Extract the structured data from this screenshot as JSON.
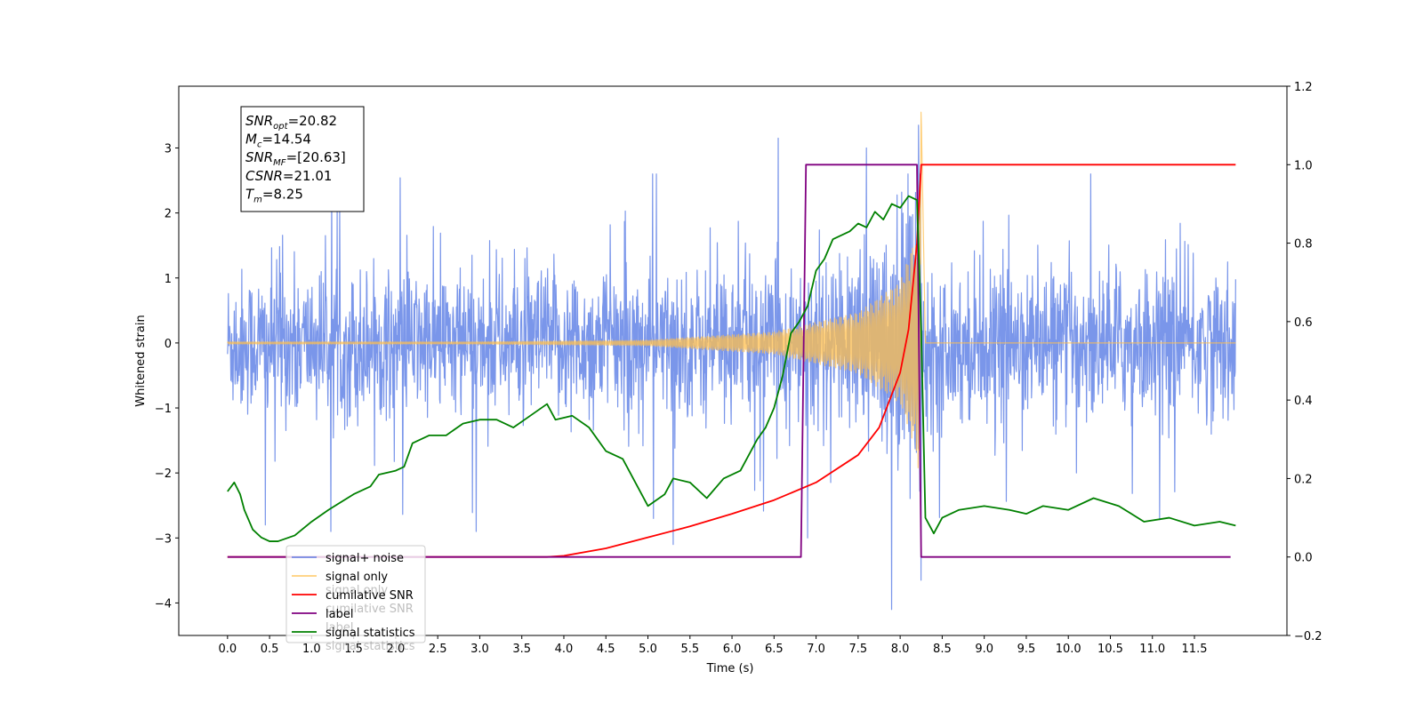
{
  "chart_data": {
    "type": "line",
    "title": "",
    "xlabel": "Time (s)",
    "ylabel": "Whitened strain",
    "xlim": [
      -0.58,
      12.6
    ],
    "ylim": [
      -4.5,
      3.95
    ],
    "y2lim": [
      -0.2,
      1.2
    ],
    "x_ticks": [
      0.0,
      0.5,
      1.0,
      1.5,
      2.0,
      2.5,
      3.0,
      3.5,
      4.0,
      4.5,
      5.0,
      5.5,
      6.0,
      6.5,
      7.0,
      7.5,
      8.0,
      8.5,
      9.0,
      9.5,
      10.0,
      10.5,
      11.0,
      11.5
    ],
    "x_tick_labels": [
      "0.0",
      "0.5",
      "1.0",
      "1.5",
      "2.0",
      "2.5",
      "3.0",
      "3.5",
      "4.0",
      "4.5",
      "5.0",
      "5.5",
      "6.0",
      "6.5",
      "7.0",
      "7.5",
      "8.0",
      "8.5",
      "9.0",
      "9.5",
      "10.0",
      "10.5",
      "11.0",
      "11.5"
    ],
    "y_ticks": [
      3,
      2,
      1,
      0,
      -1,
      -2,
      -3,
      -4
    ],
    "y_tick_labels": [
      "3",
      "2",
      "1",
      "0",
      "−1",
      "−2",
      "−3",
      "−4"
    ],
    "y2_ticks": [
      1.2,
      1.0,
      0.8,
      0.6,
      0.4,
      0.2,
      0.0,
      -0.2
    ],
    "y2_tick_labels": [
      "1.2",
      "1.0",
      "0.8",
      "0.6",
      "0.4",
      "0.2",
      "0.0",
      "−0.2"
    ],
    "grid": false,
    "legend_position": "bottom-left",
    "annotation": [
      {
        "base": "SNR",
        "sub": "opt",
        "value": "=20.82"
      },
      {
        "base": "M",
        "sub": "c",
        "value": "=14.54"
      },
      {
        "base": "SNR",
        "sub": "MF",
        "value": "=[20.63]"
      },
      {
        "base": "CSNR",
        "sub": "",
        "value": "=21.01"
      },
      {
        "base": "T",
        "sub": "m",
        "value": "=8.25"
      }
    ],
    "series": [
      {
        "name": "signal+ noise",
        "axis": "left",
        "color": "#4169e1",
        "x_range": [
          0.0,
          11.99
        ],
        "noise_std": 0.55,
        "peaks": [
          {
            "x": 7.9,
            "y": -4.1
          },
          {
            "x": 8.22,
            "y": 3.35
          },
          {
            "x": 8.25,
            "y": -3.65
          },
          {
            "x": 6.55,
            "y": 3.15
          },
          {
            "x": 7.6,
            "y": 3.0
          },
          {
            "x": 0.45,
            "y": -2.8
          },
          {
            "x": 5.3,
            "y": -3.1
          },
          {
            "x": 6.9,
            "y": -3.0
          }
        ]
      },
      {
        "name": "signal only",
        "axis": "left",
        "color": "#ffbf4d",
        "x_range": [
          0.0,
          11.99
        ],
        "merger_time": 8.25,
        "merger_peak": 3.55,
        "envelope": [
          [
            3.0,
            0.02
          ],
          [
            5.0,
            0.05
          ],
          [
            6.5,
            0.2
          ],
          [
            7.5,
            0.55
          ],
          [
            8.0,
            1.1
          ],
          [
            8.2,
            2.0
          ],
          [
            8.25,
            3.55
          ]
        ]
      },
      {
        "name": "cumilative SNR",
        "axis": "right",
        "color": "#ff0000",
        "points": [
          [
            0.0,
            0.0
          ],
          [
            3.8,
            0.0
          ],
          [
            4.0,
            0.003
          ],
          [
            4.5,
            0.022
          ],
          [
            5.0,
            0.05
          ],
          [
            5.5,
            0.078
          ],
          [
            6.0,
            0.11
          ],
          [
            6.5,
            0.145
          ],
          [
            7.0,
            0.19
          ],
          [
            7.5,
            0.26
          ],
          [
            7.75,
            0.33
          ],
          [
            8.0,
            0.47
          ],
          [
            8.1,
            0.58
          ],
          [
            8.2,
            0.8
          ],
          [
            8.25,
            1.0
          ],
          [
            11.99,
            1.0
          ]
        ]
      },
      {
        "name": "label",
        "axis": "right",
        "color": "#800080",
        "points": [
          [
            0.0,
            0.0
          ],
          [
            6.82,
            0.0
          ],
          [
            6.88,
            1.0
          ],
          [
            8.2,
            1.0
          ],
          [
            8.25,
            0.0
          ],
          [
            11.93,
            0.0
          ]
        ]
      },
      {
        "name": "signal statistics",
        "axis": "right",
        "color": "#008000",
        "points": [
          [
            0.0,
            0.167
          ],
          [
            0.08,
            0.19
          ],
          [
            0.15,
            0.16
          ],
          [
            0.2,
            0.12
          ],
          [
            0.3,
            0.07
          ],
          [
            0.4,
            0.05
          ],
          [
            0.5,
            0.04
          ],
          [
            0.6,
            0.04
          ],
          [
            0.8,
            0.055
          ],
          [
            1.0,
            0.09
          ],
          [
            1.2,
            0.12
          ],
          [
            1.5,
            0.16
          ],
          [
            1.7,
            0.18
          ],
          [
            1.8,
            0.21
          ],
          [
            2.0,
            0.22
          ],
          [
            2.1,
            0.23
          ],
          [
            2.2,
            0.29
          ],
          [
            2.4,
            0.31
          ],
          [
            2.6,
            0.31
          ],
          [
            2.8,
            0.34
          ],
          [
            3.0,
            0.35
          ],
          [
            3.2,
            0.35
          ],
          [
            3.4,
            0.33
          ],
          [
            3.6,
            0.36
          ],
          [
            3.8,
            0.39
          ],
          [
            3.9,
            0.35
          ],
          [
            4.1,
            0.36
          ],
          [
            4.3,
            0.33
          ],
          [
            4.5,
            0.27
          ],
          [
            4.7,
            0.25
          ],
          [
            5.0,
            0.13
          ],
          [
            5.2,
            0.16
          ],
          [
            5.3,
            0.2
          ],
          [
            5.5,
            0.19
          ],
          [
            5.7,
            0.15
          ],
          [
            5.9,
            0.2
          ],
          [
            6.1,
            0.22
          ],
          [
            6.3,
            0.3
          ],
          [
            6.4,
            0.33
          ],
          [
            6.5,
            0.38
          ],
          [
            6.6,
            0.46
          ],
          [
            6.7,
            0.57
          ],
          [
            6.8,
            0.6
          ],
          [
            6.9,
            0.64
          ],
          [
            7.0,
            0.73
          ],
          [
            7.1,
            0.76
          ],
          [
            7.2,
            0.81
          ],
          [
            7.4,
            0.83
          ],
          [
            7.5,
            0.85
          ],
          [
            7.6,
            0.84
          ],
          [
            7.7,
            0.88
          ],
          [
            7.8,
            0.86
          ],
          [
            7.9,
            0.9
          ],
          [
            8.0,
            0.89
          ],
          [
            8.1,
            0.92
          ],
          [
            8.2,
            0.91
          ],
          [
            8.25,
            0.58
          ],
          [
            8.3,
            0.1
          ],
          [
            8.4,
            0.06
          ],
          [
            8.5,
            0.1
          ],
          [
            8.7,
            0.12
          ],
          [
            9.0,
            0.13
          ],
          [
            9.3,
            0.12
          ],
          [
            9.5,
            0.11
          ],
          [
            9.7,
            0.13
          ],
          [
            10.0,
            0.12
          ],
          [
            10.3,
            0.15
          ],
          [
            10.6,
            0.13
          ],
          [
            10.9,
            0.09
          ],
          [
            11.2,
            0.1
          ],
          [
            11.5,
            0.08
          ],
          [
            11.8,
            0.09
          ],
          [
            11.99,
            0.08
          ]
        ]
      }
    ],
    "legend_ghost_text": [
      "signal only",
      "cumilative SNR",
      "label",
      "signal statistics"
    ]
  }
}
